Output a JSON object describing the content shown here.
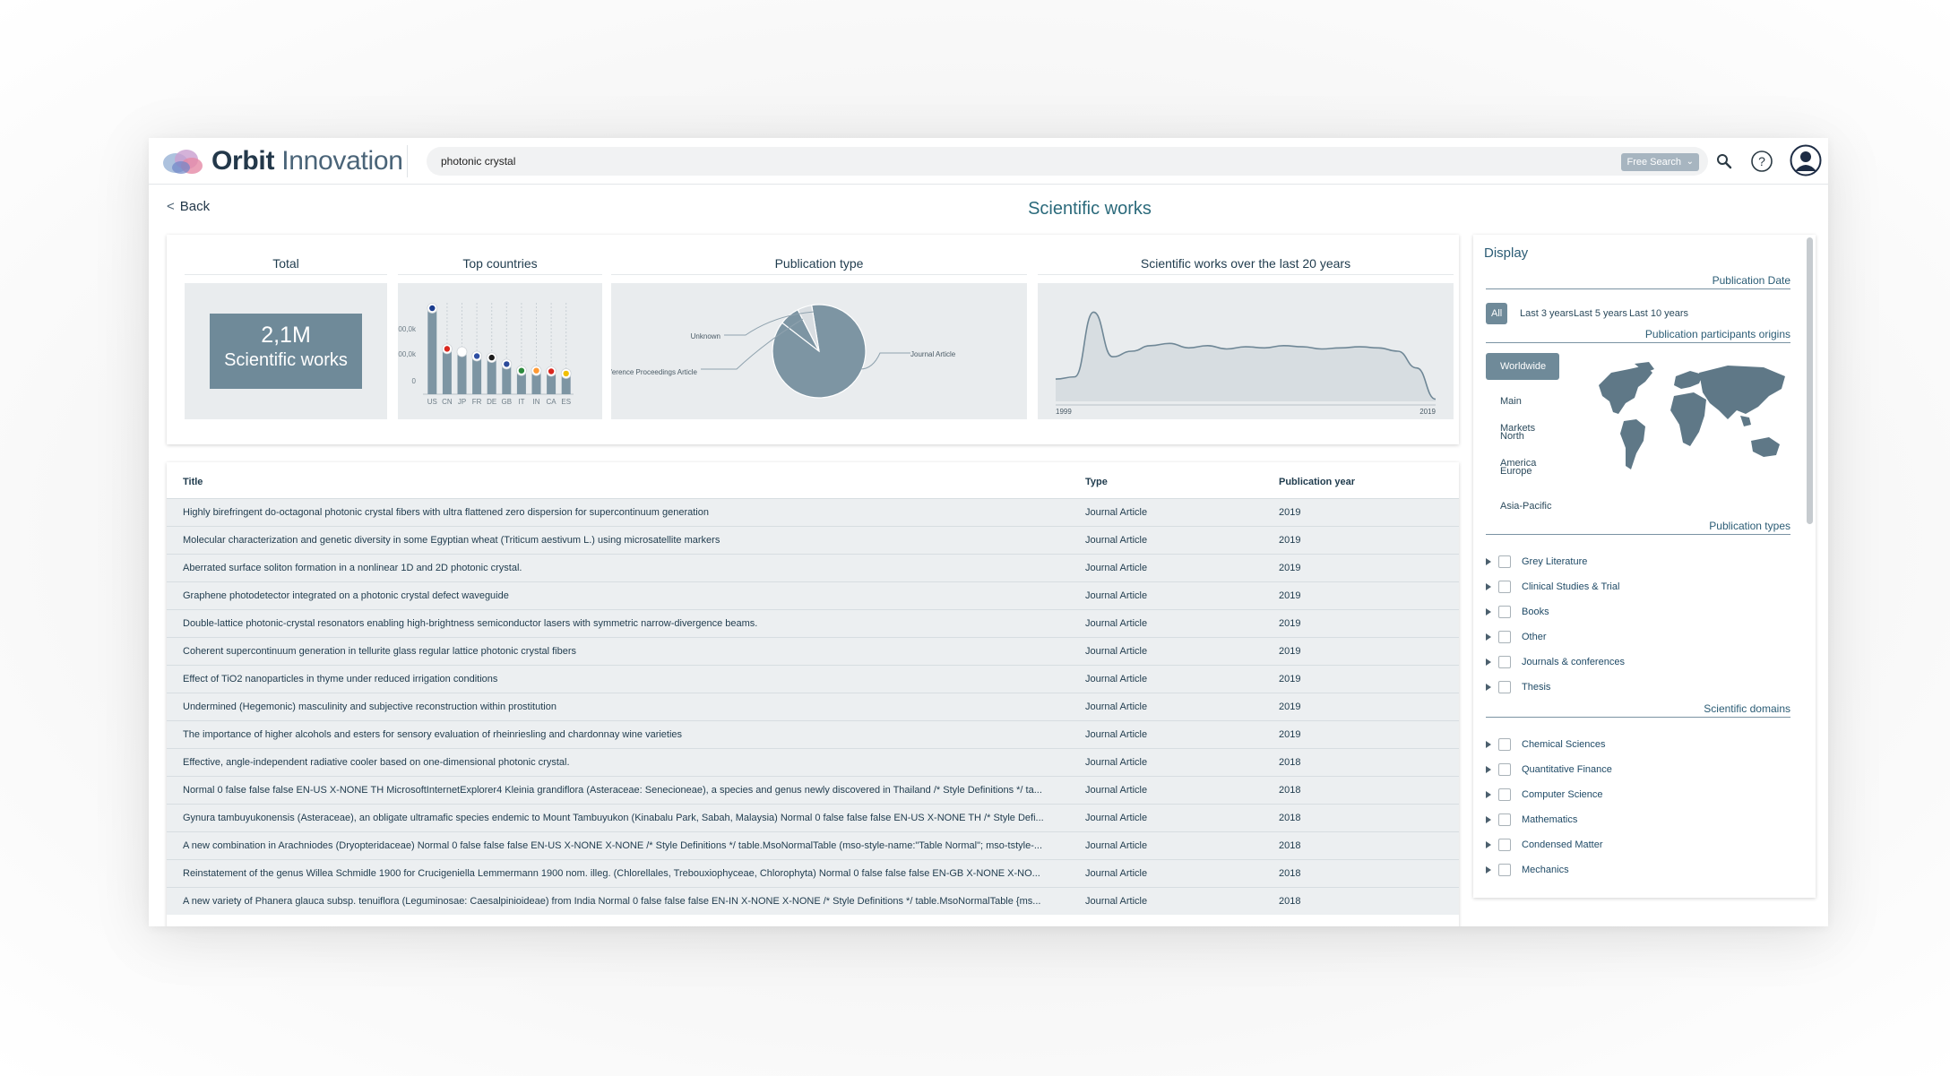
{
  "header": {
    "logo_word1": "Orbit",
    "logo_word2": "Innovation",
    "search_query": "photonic crystal",
    "search_mode": "Free Search"
  },
  "nav": {
    "back_label": "Back"
  },
  "page_title": "Scientific works",
  "stats": {
    "total_title": "Total",
    "total_value": "2,1M",
    "total_label": "Scientific works",
    "countries_title": "Top countries",
    "pubtype_title": "Publication type",
    "timeline_title": "Scientific works over the last 20 years"
  },
  "chart_data": [
    {
      "type": "bar",
      "title": "Top countries",
      "categories": [
        "US",
        "CN",
        "JP",
        "FR",
        "DE",
        "GB",
        "IT",
        "IN",
        "CA",
        "ES"
      ],
      "values": [
        580,
        300,
        280,
        250,
        240,
        195,
        150,
        150,
        145,
        130
      ],
      "ytick_labels": [
        "00,0k",
        "00,0k",
        "0"
      ],
      "grid": true
    },
    {
      "type": "pie",
      "title": "Publication type",
      "labels": [
        "Journal Article",
        "Conference Proceedings Article",
        "Unknown"
      ],
      "values": [
        88,
        7,
        5
      ],
      "colors": [
        "#7d95a3",
        "#7d95a3",
        "#d9dee2"
      ]
    },
    {
      "type": "area",
      "title": "Scientific works over the last 20 years",
      "x_start_label": "1999",
      "x_end_label": "2019",
      "x": [
        1999,
        2000,
        2001,
        2002,
        2003,
        2004,
        2005,
        2006,
        2007,
        2008,
        2009,
        2010,
        2011,
        2012,
        2013,
        2014,
        2015,
        2016,
        2017,
        2018,
        2019
      ],
      "values": [
        20,
        22,
        80,
        40,
        45,
        50,
        52,
        48,
        50,
        47,
        49,
        48,
        50,
        49,
        47,
        48,
        49,
        48,
        45,
        30,
        2
      ],
      "ylim": [
        0,
        90
      ]
    }
  ],
  "table": {
    "headers": {
      "title": "Title",
      "type": "Type",
      "year": "Publication year"
    },
    "rows": [
      {
        "title": "Highly birefringent do-octagonal photonic crystal fibers with ultra flattened zero dispersion for supercontinuum generation",
        "type": "Journal Article",
        "year": "2019"
      },
      {
        "title": "Molecular characterization and genetic diversity in some Egyptian wheat (Triticum aestivum L.) using microsatellite markers",
        "type": "Journal Article",
        "year": "2019"
      },
      {
        "title": "Aberrated surface soliton formation in a nonlinear 1D and 2D photonic crystal.",
        "type": "Journal Article",
        "year": "2019"
      },
      {
        "title": "Graphene photodetector integrated on a photonic crystal defect waveguide",
        "type": "Journal Article",
        "year": "2019"
      },
      {
        "title": "Double-lattice photonic-crystal resonators enabling high-brightness semiconductor lasers with symmetric narrow-divergence beams.",
        "type": "Journal Article",
        "year": "2019"
      },
      {
        "title": "Coherent supercontinuum generation in tellurite glass regular lattice photonic crystal fibers",
        "type": "Journal Article",
        "year": "2019"
      },
      {
        "title": "Effect of TiO2 nanoparticles in thyme under reduced irrigation conditions",
        "type": "Journal Article",
        "year": "2019"
      },
      {
        "title": "Undermined (Hegemonic) masculinity and subjective reconstruction within prostitution",
        "type": "Journal Article",
        "year": "2019"
      },
      {
        "title": "The importance of higher alcohols and esters for sensory evaluation of rheinriesling and chardonnay wine varieties",
        "type": "Journal Article",
        "year": "2019"
      },
      {
        "title": "Effective, angle-independent radiative cooler based on one-dimensional photonic crystal.",
        "type": "Journal Article",
        "year": "2018"
      },
      {
        "title": "Normal 0 false false false EN-US X-NONE TH MicrosoftInternetExplorer4 Kleinia grandiflora (Asteraceae: Senecioneae), a species and genus newly discovered in Thailand /* Style Definitions */ ta...",
        "type": "Journal Article",
        "year": "2018"
      },
      {
        "title": "Gynura tambuyukonensis (Asteraceae), an obligate ultramafic species endemic to Mount Tambuyukon (Kinabalu Park, Sabah, Malaysia) Normal 0 false false false EN-US X-NONE TH /* Style Defi...",
        "type": "Journal Article",
        "year": "2018"
      },
      {
        "title": "A new combination in Arachniodes (Dryopteridaceae) Normal 0 false false false EN-US X-NONE X-NONE /* Style Definitions */ table.MsoNormalTable (mso-style-name:\"Table Normal\"; mso-tstyle-...",
        "type": "Journal Article",
        "year": "2018"
      },
      {
        "title": "Reinstatement of the genus Willea Schmidle 1900 for Crucigeniella Lemmermann 1900 nom. illeg. (Chlorellales, Trebouxiophyceae, Chlorophyta) Normal 0 false false false EN-GB X-NONE X-NO...",
        "type": "Journal Article",
        "year": "2018"
      },
      {
        "title": "A new variety of Phanera glauca subsp. tenuiflora (Leguminosae: Caesalpinioideae) from India Normal 0 false false false EN-IN X-NONE X-NONE /* Style Definitions */ table.MsoNormalTable {ms...",
        "type": "Journal Article",
        "year": "2018"
      }
    ]
  },
  "panel": {
    "title": "Display",
    "pub_date_label": "Publication Date",
    "date_options": [
      "All",
      "Last 3 years",
      "Last 5 years",
      "Last 10 years"
    ],
    "date_selected": "All",
    "origins_label": "Publication participants origins",
    "regions": [
      "Worldwide",
      "Main Markets",
      "North America",
      "Europe",
      "Asia-Pacific"
    ],
    "region_selected": "Worldwide",
    "pub_types_label": "Publication types",
    "pub_types": [
      "Grey Literature",
      "Clinical Studies & Trial",
      "Books",
      "Other",
      "Journals & conferences",
      "Thesis"
    ],
    "domains_label": "Scientific domains",
    "domains": [
      "Chemical Sciences",
      "Quantitative Finance",
      "Computer Science",
      "Mathematics",
      "Condensed Matter",
      "Mechanics"
    ]
  },
  "colors": {
    "accent": "#6f8a99",
    "title": "#2b6a7b",
    "chart_fill": "#7d95a3",
    "panel_bg": "#e9ecee"
  }
}
